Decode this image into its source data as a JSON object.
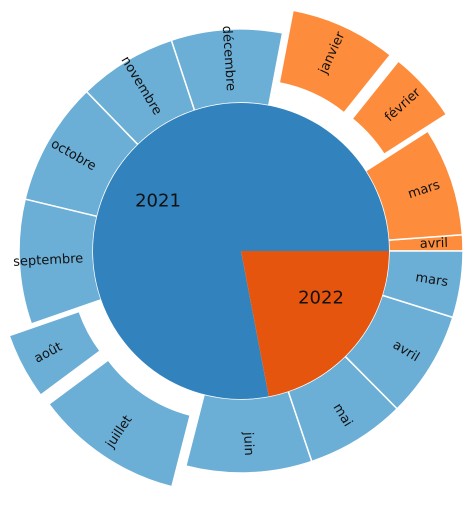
{
  "chart_data": {
    "type": "sunburst",
    "title": "",
    "inner": [
      {
        "label": "2021",
        "value": 9.36,
        "color": "#3182bd"
      },
      {
        "label": "2022",
        "value": 2.64,
        "color": "#e6550d"
      }
    ],
    "outer": [
      {
        "label": "avril",
        "parent": "2022",
        "value": 0.14,
        "color": "#fd8d3c"
      },
      {
        "label": "mars",
        "parent": "2022",
        "value": 0.95,
        "color": "#fd8d3c"
      },
      {
        "label": "février",
        "parent": "2022",
        "value": 0.62,
        "color": "#fd8d3c",
        "exploded": true
      },
      {
        "label": "janvier",
        "parent": "2022",
        "value": 0.93,
        "color": "#fd8d3c",
        "exploded": true
      },
      {
        "label": "décembre",
        "parent": "2021",
        "value": 0.97,
        "color": "#6baed6"
      },
      {
        "label": "novembre",
        "parent": "2021",
        "value": 0.86,
        "color": "#6baed6"
      },
      {
        "label": "octobre",
        "parent": "2021",
        "value": 1.08,
        "color": "#6baed6"
      },
      {
        "label": "septembre",
        "parent": "2021",
        "value": 1.09,
        "color": "#6baed6"
      },
      {
        "label": "août",
        "parent": "2021",
        "value": 0.58,
        "color": "#6baed6",
        "exploded": true
      },
      {
        "label": "juillet",
        "parent": "2021",
        "value": 1.3,
        "color": "#6baed6",
        "exploded": true
      },
      {
        "label": "juin",
        "parent": "2021",
        "value": 1.1,
        "color": "#6baed6"
      },
      {
        "label": "mai",
        "parent": "2021",
        "value": 0.87,
        "color": "#6baed6"
      },
      {
        "label": "avril",
        "parent": "2021",
        "value": 0.93,
        "color": "#6baed6"
      },
      {
        "label": "mars",
        "parent": "2021",
        "value": 0.58,
        "color": "#6baed6"
      }
    ]
  }
}
